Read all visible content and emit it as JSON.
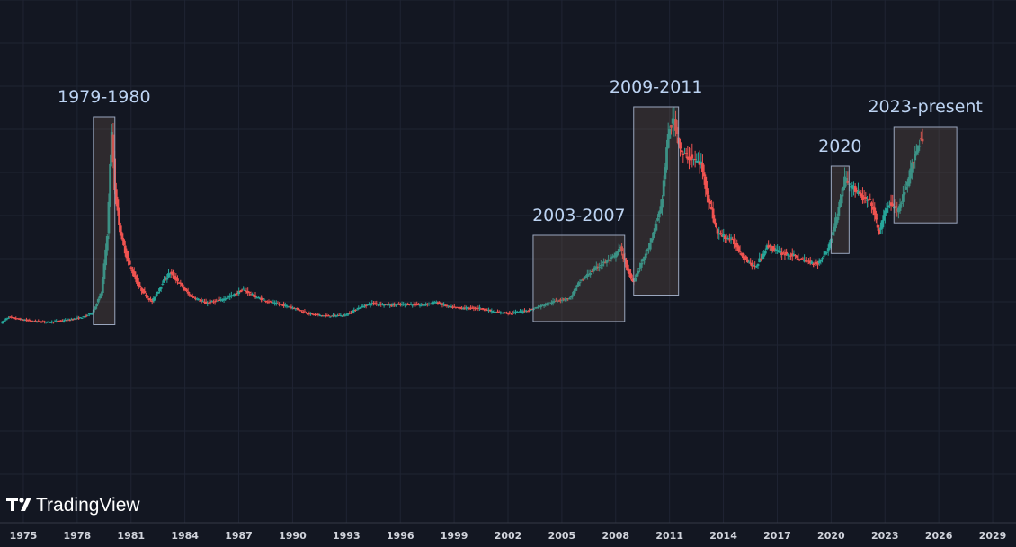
{
  "brand": {
    "name": "TradingView",
    "logo_icon": "tradingview-logo-icon"
  },
  "colors": {
    "background": "#131722",
    "grid": "#1f2433",
    "up": "#26a69a",
    "down": "#ef5350",
    "box_stroke": "#9aa6bd",
    "box_fill": "rgba(120,95,80,0.28)",
    "text": "#d1d4dc",
    "annotation_text": "#bcd3f2"
  },
  "chart_data": {
    "type": "candlestick",
    "title": "",
    "xlabel": "",
    "ylabel": "",
    "grid": true,
    "xlim": [
      1973.7,
      2030.3
    ],
    "x_ticks": [
      "1975",
      "1978",
      "1981",
      "1984",
      "1987",
      "1990",
      "1993",
      "1996",
      "1999",
      "2002",
      "2005",
      "2008",
      "2011",
      "2014",
      "2017",
      "2020",
      "2023",
      "2026",
      "2029"
    ],
    "annotations": [
      {
        "label": "1979-1980",
        "x_start": 1978.9,
        "x_end": 1980.1
      },
      {
        "label": "2003-2007",
        "x_start": 2003.4,
        "x_end": 2008.5
      },
      {
        "label": "2009-2011",
        "x_start": 2009.0,
        "x_end": 2011.5
      },
      {
        "label": "2020",
        "x_start": 2020.0,
        "x_end": 2021.0
      },
      {
        "label": "2023-present",
        "x_start": 2023.5,
        "x_end": 2027.0
      }
    ],
    "series": [
      {
        "name": "",
        "keypoints": [
          [
            1973.8,
            4
          ],
          [
            1974.2,
            10
          ],
          [
            1974.8,
            8
          ],
          [
            1975.5,
            6
          ],
          [
            1976.5,
            5
          ],
          [
            1977.5,
            7
          ],
          [
            1978.4,
            10
          ],
          [
            1978.9,
            15
          ],
          [
            1979.4,
            35
          ],
          [
            1979.75,
            100
          ],
          [
            1979.95,
            200
          ],
          [
            1980.15,
            135
          ],
          [
            1980.5,
            90
          ],
          [
            1980.9,
            65
          ],
          [
            1981.5,
            40
          ],
          [
            1982.2,
            25
          ],
          [
            1982.8,
            45
          ],
          [
            1983.2,
            55
          ],
          [
            1983.7,
            45
          ],
          [
            1984.3,
            32
          ],
          [
            1985.2,
            24
          ],
          [
            1986.0,
            27
          ],
          [
            1986.7,
            32
          ],
          [
            1987.3,
            38
          ],
          [
            1988.0,
            30
          ],
          [
            1989.0,
            24
          ],
          [
            1990.0,
            20
          ],
          [
            1991.0,
            13
          ],
          [
            1992.0,
            11
          ],
          [
            1993.0,
            12
          ],
          [
            1993.8,
            20
          ],
          [
            1994.5,
            24
          ],
          [
            1995.5,
            22
          ],
          [
            1996.3,
            23
          ],
          [
            1997.2,
            22
          ],
          [
            1998.0,
            25
          ],
          [
            1998.8,
            20
          ],
          [
            1999.5,
            19
          ],
          [
            2000.5,
            19
          ],
          [
            2001.3,
            15
          ],
          [
            2002.2,
            14
          ],
          [
            2003.2,
            17
          ],
          [
            2004.0,
            22
          ],
          [
            2004.8,
            27
          ],
          [
            2005.5,
            29
          ],
          [
            2006.0,
            45
          ],
          [
            2006.6,
            55
          ],
          [
            2007.2,
            63
          ],
          [
            2007.9,
            70
          ],
          [
            2008.3,
            80
          ],
          [
            2008.7,
            58
          ],
          [
            2009.0,
            45
          ],
          [
            2009.6,
            70
          ],
          [
            2010.0,
            85
          ],
          [
            2010.6,
            125
          ],
          [
            2011.0,
            200
          ],
          [
            2011.3,
            210
          ],
          [
            2011.7,
            175
          ],
          [
            2012.3,
            170
          ],
          [
            2012.8,
            165
          ],
          [
            2013.2,
            130
          ],
          [
            2013.7,
            95
          ],
          [
            2014.5,
            88
          ],
          [
            2015.2,
            70
          ],
          [
            2015.8,
            60
          ],
          [
            2016.5,
            82
          ],
          [
            2017.2,
            75
          ],
          [
            2017.9,
            72
          ],
          [
            2018.7,
            66
          ],
          [
            2019.3,
            64
          ],
          [
            2019.9,
            80
          ],
          [
            2020.4,
            115
          ],
          [
            2020.8,
            150
          ],
          [
            2021.3,
            140
          ],
          [
            2021.8,
            130
          ],
          [
            2022.3,
            125
          ],
          [
            2022.7,
            95
          ],
          [
            2023.2,
            125
          ],
          [
            2023.8,
            118
          ],
          [
            2024.3,
            145
          ],
          [
            2024.7,
            175
          ],
          [
            2025.05,
            190
          ]
        ]
      }
    ]
  }
}
